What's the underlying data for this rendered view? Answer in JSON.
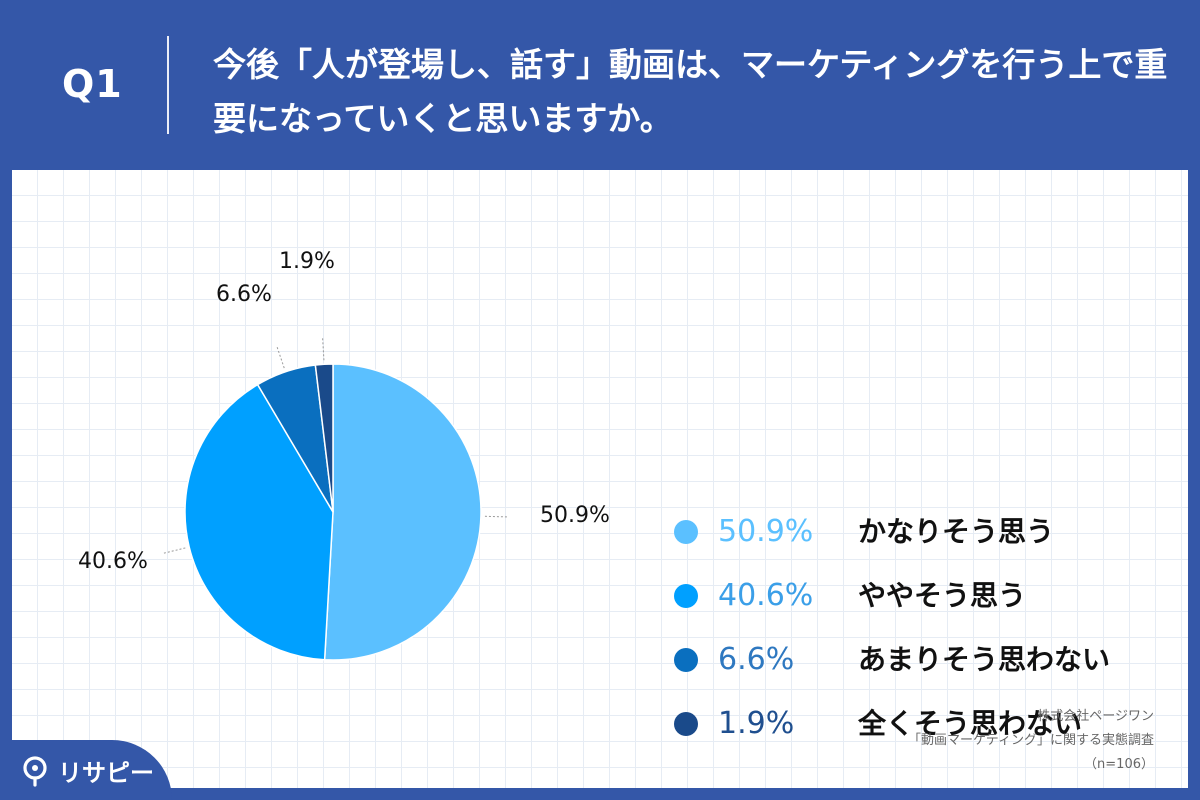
{
  "header": {
    "q_label": "Q1",
    "question": "今後「人が登場し、話す」動画は、マーケティングを行う上で重要になっていくと思いますか。"
  },
  "colors": {
    "background": "#3457a8",
    "series": [
      "#5bc0ff",
      "#00a0ff",
      "#0a6fbf",
      "#1a4a8a"
    ],
    "legend_text": [
      "#5bc0ff",
      "#3b9fe8",
      "#2e78c0",
      "#1f4f8f"
    ]
  },
  "chart_data": {
    "type": "pie",
    "categories": [
      "かなりそう思う",
      "ややそう思う",
      "あまりそう思わない",
      "全くそう思わない"
    ],
    "values": [
      50.9,
      40.6,
      6.6,
      1.9
    ],
    "value_labels": [
      "50.9%",
      "40.6%",
      "6.6%",
      "1.9%"
    ],
    "start_angle": "12 o'clock",
    "direction": "clockwise",
    "legend_position": "right"
  },
  "credit": {
    "line1": "株式会社ページワン",
    "line2": "「動画マーケティング」に関する実態調査",
    "line3": "（n=106）"
  },
  "logo": {
    "text": "リサピー"
  }
}
